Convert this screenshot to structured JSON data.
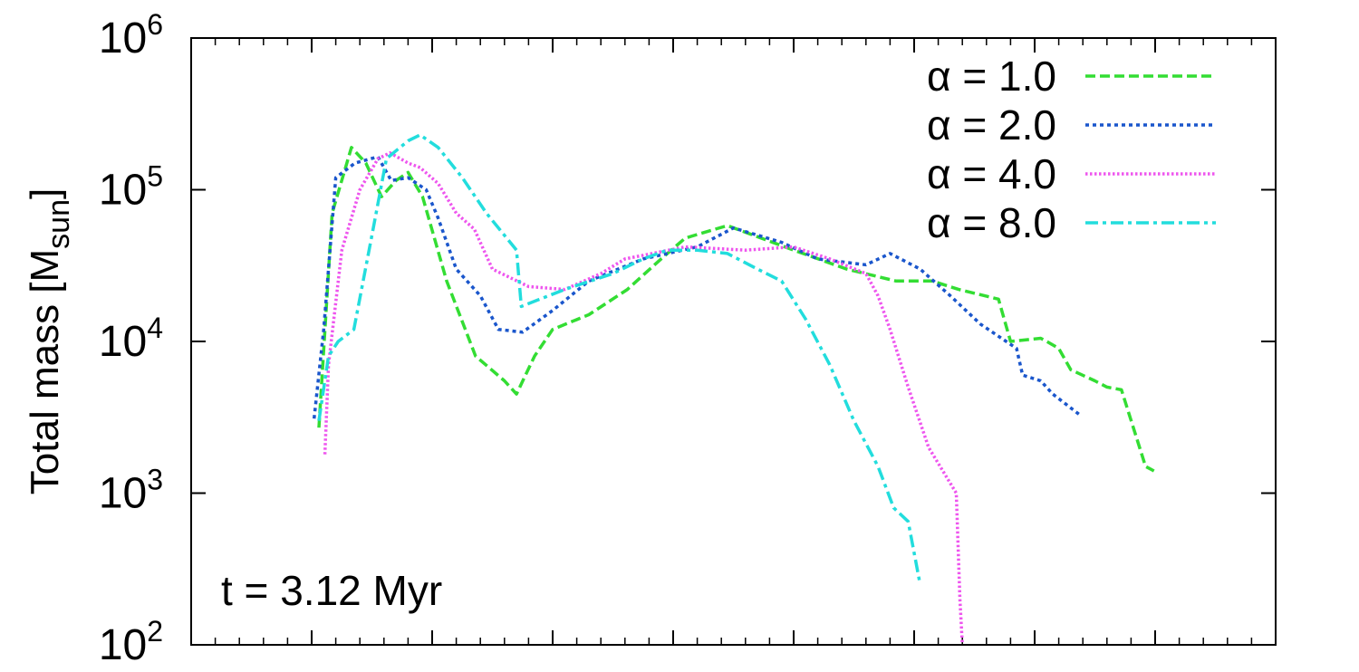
{
  "chart_data": {
    "type": "line",
    "ylabel": {
      "main": "Total mass [M",
      "sub": "sun",
      "close": "]"
    },
    "y_scale": "log",
    "ylim": [
      100,
      1000000
    ],
    "y_ticks": [
      {
        "value": 100,
        "base": "10",
        "exp": "2"
      },
      {
        "value": 1000,
        "base": "10",
        "exp": "3"
      },
      {
        "value": 10000,
        "base": "10",
        "exp": "4"
      },
      {
        "value": 100000,
        "base": "10",
        "exp": "5"
      },
      {
        "value": 1000000,
        "base": "10",
        "exp": "6"
      }
    ],
    "xlim": [
      0,
      9
    ],
    "x_major_ticks": [
      1,
      2,
      3,
      4,
      5,
      6,
      7,
      8
    ],
    "x_minor_step": 0.2,
    "annotation": "t = 3.12 Myr",
    "legend_position": "top-right",
    "series": [
      {
        "name": "α = 1.0",
        "color": "#33dd33",
        "dash": "dashed",
        "x": [
          1.06,
          1.17,
          1.33,
          1.45,
          1.58,
          1.7,
          1.8,
          1.92,
          2.12,
          2.36,
          2.6,
          2.7,
          2.85,
          3.0,
          3.3,
          3.62,
          3.9,
          4.1,
          4.35,
          4.45,
          5.0,
          5.44,
          5.85,
          6.15,
          6.37,
          6.7,
          6.8,
          7.05,
          7.1,
          7.2,
          7.3,
          7.5,
          7.6,
          7.72,
          7.92,
          7.99
        ],
        "y": [
          2700,
          70000,
          190000,
          150000,
          90000,
          115000,
          130000,
          90000,
          25000,
          8000,
          5500,
          4500,
          8000,
          12000,
          15000,
          22000,
          35000,
          48000,
          55000,
          58000,
          40000,
          30000,
          25000,
          25000,
          22000,
          19000,
          10000,
          10500,
          10000,
          9000,
          6500,
          5500,
          5000,
          4800,
          1500,
          1400
        ]
      },
      {
        "name": "α = 2.0",
        "color": "#1a56cc",
        "dash": "dotted",
        "x": [
          1.02,
          1.1,
          1.2,
          1.36,
          1.55,
          1.66,
          1.8,
          1.95,
          2.05,
          2.2,
          2.4,
          2.55,
          2.75,
          3.0,
          3.3,
          3.75,
          4.2,
          4.5,
          4.9,
          5.2,
          5.6,
          5.8,
          6.05,
          6.3,
          6.55,
          6.85,
          6.9,
          7.05,
          7.15,
          7.37
        ],
        "y": [
          3100,
          12000,
          120000,
          150000,
          165000,
          115000,
          120000,
          100000,
          65000,
          30000,
          20000,
          12000,
          11500,
          16000,
          25000,
          35000,
          42000,
          56000,
          45000,
          35000,
          32000,
          38000,
          30000,
          20000,
          13000,
          9000,
          6000,
          5500,
          4500,
          3300
        ]
      },
      {
        "name": "α = 4.0",
        "color": "#ee55ee",
        "dash": "fine-dotted",
        "x": [
          1.11,
          1.14,
          1.25,
          1.4,
          1.55,
          1.65,
          1.8,
          1.9,
          2.05,
          2.2,
          2.35,
          2.5,
          2.8,
          3.1,
          3.4,
          3.6,
          4.1,
          4.6,
          5.0,
          5.3,
          5.6,
          5.7,
          5.8,
          5.95,
          6.12,
          6.35,
          6.38,
          6.4
        ],
        "y": [
          1800,
          7000,
          40000,
          100000,
          160000,
          175000,
          150000,
          140000,
          110000,
          70000,
          55000,
          30000,
          23000,
          22000,
          28000,
          35000,
          42000,
          40000,
          42000,
          35000,
          28000,
          20000,
          12000,
          5000,
          2000,
          1000,
          200,
          100
        ]
      },
      {
        "name": "α = 8.0",
        "color": "#22dddd",
        "dash": "dash-dot",
        "x": [
          1.06,
          1.14,
          1.22,
          1.35,
          1.5,
          1.62,
          1.8,
          1.9,
          2.05,
          2.25,
          2.45,
          2.7,
          2.74,
          3.1,
          3.5,
          3.75,
          3.95,
          4.2,
          4.45,
          4.7,
          4.9,
          5.1,
          5.3,
          5.5,
          5.7,
          5.83,
          5.95,
          6.05
        ],
        "y": [
          3000,
          8000,
          10000,
          12000,
          50000,
          160000,
          210000,
          230000,
          190000,
          120000,
          70000,
          40000,
          17000,
          22000,
          28000,
          35000,
          40000,
          40000,
          38000,
          30000,
          25000,
          14000,
          7000,
          3000,
          1500,
          800,
          650,
          250
        ]
      }
    ]
  }
}
